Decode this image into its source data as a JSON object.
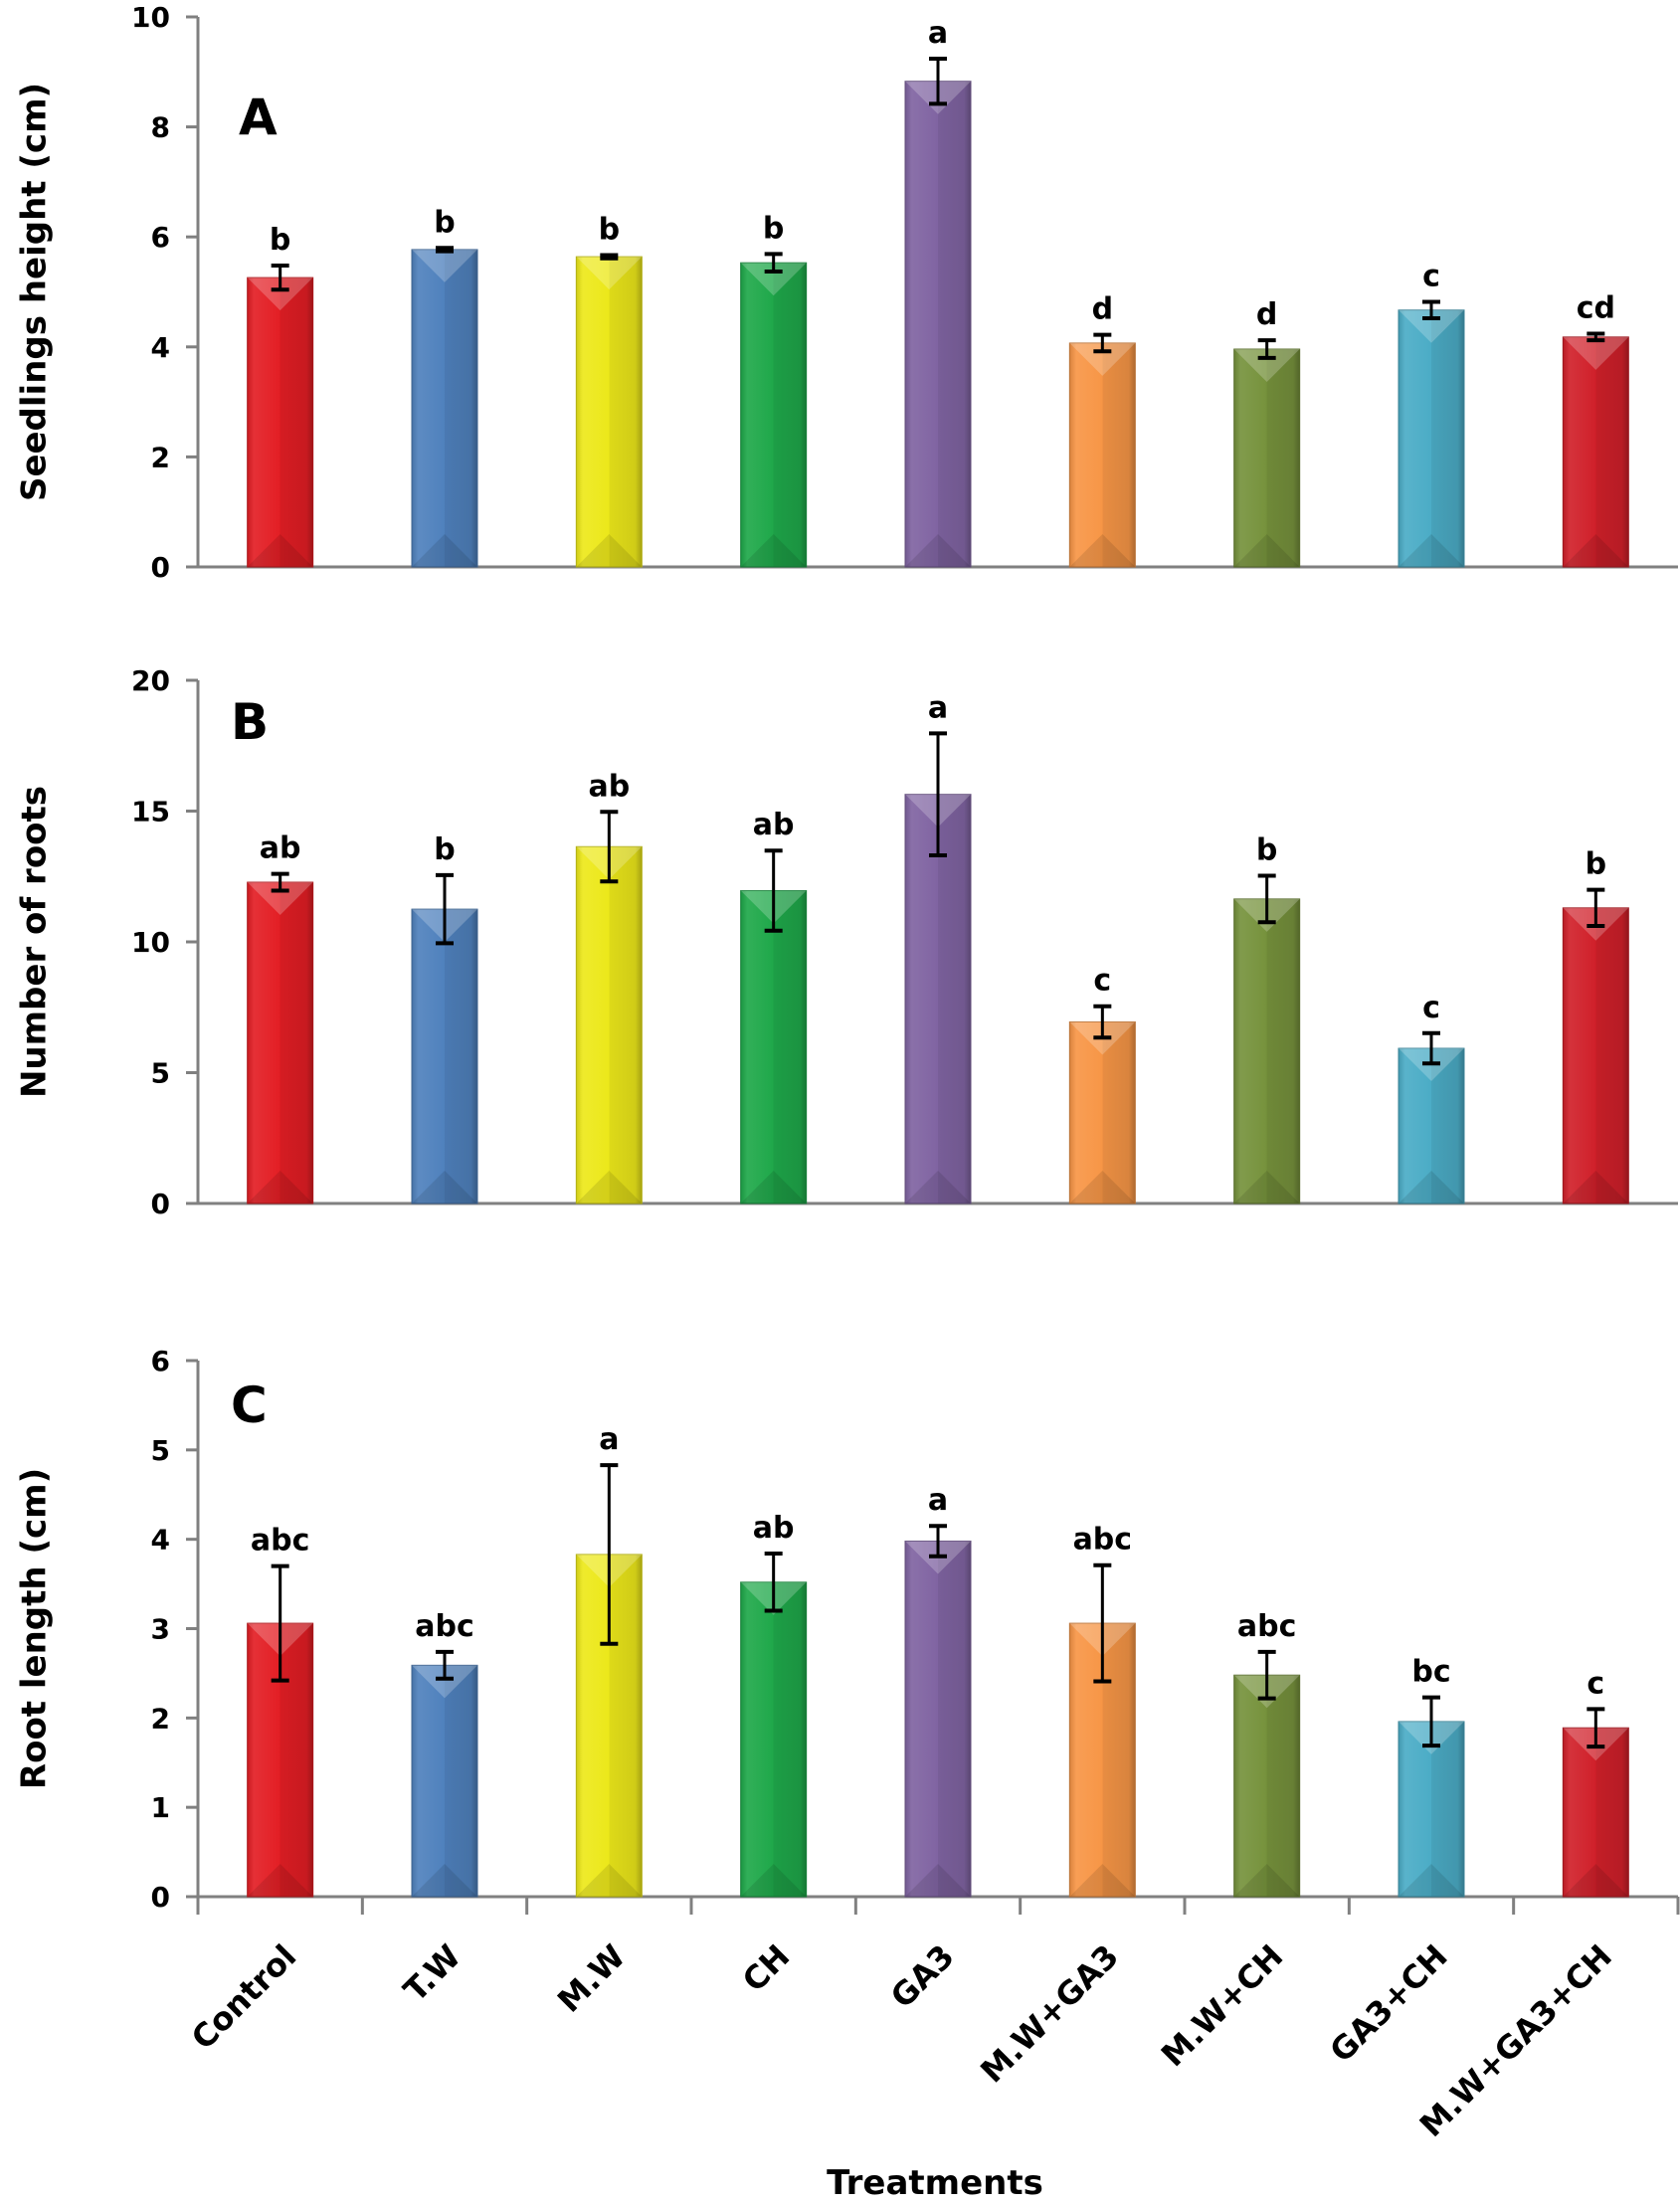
{
  "chart_data": [
    {
      "type": "bar",
      "panel": "A",
      "title": "",
      "xlabel": "",
      "ylabel": "Seedlings height (cm)",
      "ylim": [
        0,
        10
      ],
      "yticks": [
        0,
        2,
        4,
        6,
        8,
        10
      ],
      "grid": false,
      "categories": [
        "Control",
        "T.W",
        "M.W",
        "CH",
        "GA3",
        "M.W+GA3",
        "M.W+CH",
        "GA3+CH",
        "M.W+GA3+CH"
      ],
      "values": [
        5.26,
        5.77,
        5.64,
        5.53,
        8.83,
        4.07,
        3.96,
        4.67,
        4.18
      ],
      "errors": [
        0.22,
        0.03,
        0.03,
        0.16,
        0.41,
        0.15,
        0.16,
        0.15,
        0.06
      ],
      "significance": [
        "b",
        "b",
        "b",
        "b",
        "a",
        "d",
        "d",
        "c",
        "cd"
      ]
    },
    {
      "type": "bar",
      "panel": "B",
      "title": "",
      "xlabel": "",
      "ylabel": "Number of roots",
      "ylim": [
        0,
        20
      ],
      "yticks": [
        0,
        5,
        10,
        15,
        20
      ],
      "grid": false,
      "categories": [
        "Control",
        "T.W",
        "M.W",
        "CH",
        "GA3",
        "M.W+GA3",
        "M.W+CH",
        "GA3+CH",
        "M.W+GA3+CH"
      ],
      "values": [
        12.28,
        11.25,
        13.64,
        11.96,
        15.64,
        6.94,
        11.64,
        5.93,
        11.3
      ],
      "errors": [
        0.32,
        1.3,
        1.33,
        1.53,
        2.33,
        0.6,
        0.89,
        0.58,
        0.69
      ],
      "significance": [
        "ab",
        "b",
        "ab",
        "ab",
        "a",
        "c",
        "b",
        "c",
        "b"
      ]
    },
    {
      "type": "bar",
      "panel": "C",
      "title": "",
      "xlabel": "Treatments",
      "ylabel": "Root length (cm)",
      "ylim": [
        0,
        6
      ],
      "yticks": [
        0,
        1,
        2,
        3,
        4,
        5,
        6
      ],
      "grid": false,
      "categories": [
        "Control",
        "T.W",
        "M.W",
        "CH",
        "GA3",
        "M.W+GA3",
        "M.W+CH",
        "GA3+CH",
        "M.W+GA3+CH"
      ],
      "values": [
        3.06,
        2.59,
        3.83,
        3.52,
        3.98,
        3.06,
        2.48,
        1.96,
        1.89
      ],
      "errors": [
        0.64,
        0.15,
        1.0,
        0.32,
        0.17,
        0.65,
        0.26,
        0.27,
        0.21
      ],
      "significance": [
        "abc",
        "abc",
        "a",
        "ab",
        "a",
        "abc",
        "abc",
        "bc",
        "c"
      ]
    }
  ],
  "bar_colors": [
    "#e31e24",
    "#4f81bd",
    "#ece81a",
    "#1fa84a",
    "#8064a2",
    "#f79646",
    "#76923c",
    "#4bacc6",
    "#d0202a"
  ],
  "axis_color": "#808080",
  "x_axis_title": "Treatments"
}
